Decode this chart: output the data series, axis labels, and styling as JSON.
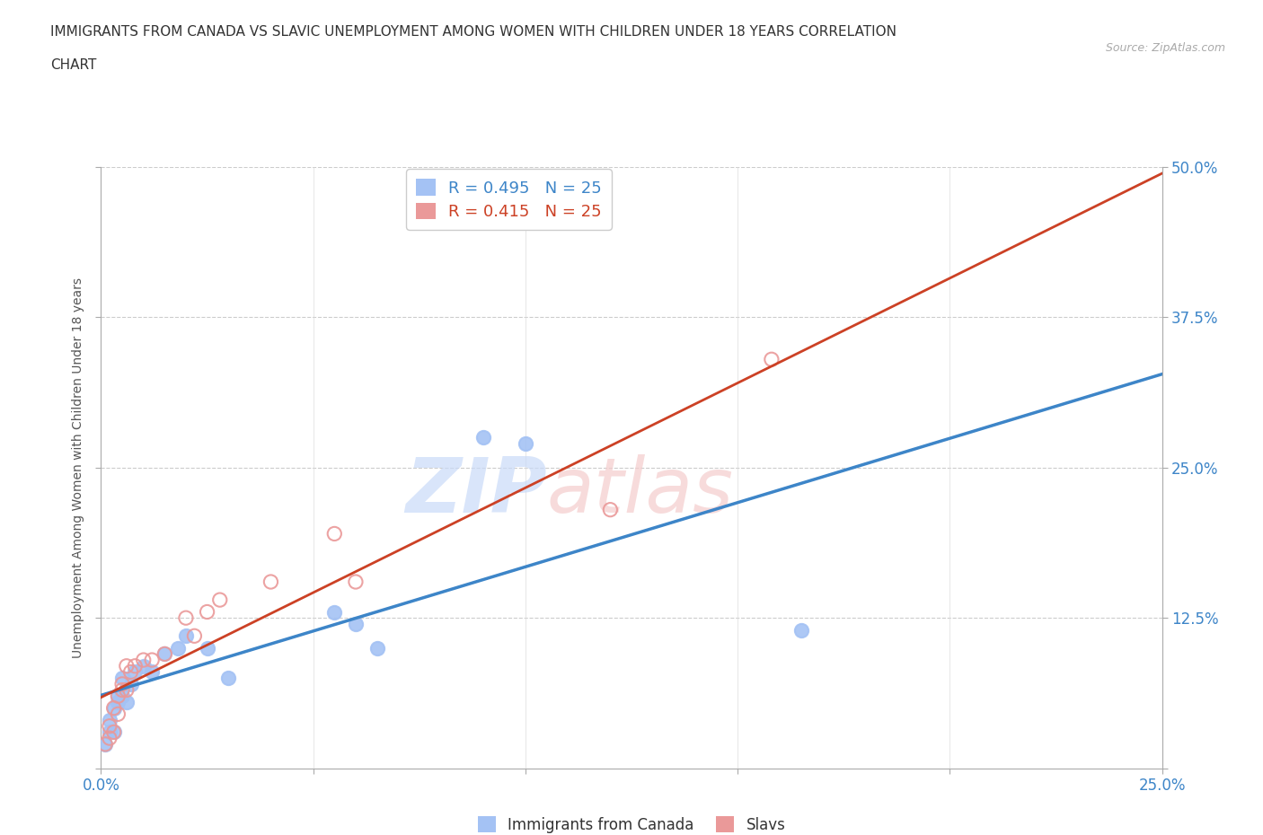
{
  "title_line1": "IMMIGRANTS FROM CANADA VS SLAVIC UNEMPLOYMENT AMONG WOMEN WITH CHILDREN UNDER 18 YEARS CORRELATION",
  "title_line2": "CHART",
  "source": "Source: ZipAtlas.com",
  "ylabel": "Unemployment Among Women with Children Under 18 years",
  "xlim": [
    0.0,
    0.25
  ],
  "ylim": [
    0.0,
    0.5
  ],
  "xtick_positions": [
    0.0,
    0.05,
    0.1,
    0.15,
    0.2,
    0.25
  ],
  "xticklabels": [
    "0.0%",
    "",
    "",
    "",
    "",
    "25.0%"
  ],
  "ytick_positions": [
    0.0,
    0.125,
    0.25,
    0.375,
    0.5
  ],
  "yticklabels": [
    "",
    "12.5%",
    "25.0%",
    "37.5%",
    "50.0%"
  ],
  "canada_R": 0.495,
  "canada_N": 25,
  "slavic_R": 0.415,
  "slavic_N": 25,
  "canada_color": "#a4c2f4",
  "slavic_color": "#ea9999",
  "canada_line_color": "#3d85c8",
  "slavic_line_color": "#cc4125",
  "watermark_text": "ZIPatlas",
  "canada_x": [
    0.001,
    0.002,
    0.002,
    0.003,
    0.003,
    0.004,
    0.004,
    0.005,
    0.005,
    0.006,
    0.007,
    0.008,
    0.01,
    0.012,
    0.015,
    0.018,
    0.02,
    0.025,
    0.03,
    0.055,
    0.06,
    0.065,
    0.09,
    0.1,
    0.165
  ],
  "canada_y": [
    0.02,
    0.03,
    0.04,
    0.03,
    0.05,
    0.055,
    0.06,
    0.06,
    0.075,
    0.055,
    0.07,
    0.08,
    0.085,
    0.08,
    0.095,
    0.1,
    0.11,
    0.1,
    0.075,
    0.13,
    0.12,
    0.1,
    0.275,
    0.27,
    0.115
  ],
  "slavic_x": [
    0.001,
    0.002,
    0.002,
    0.003,
    0.003,
    0.004,
    0.004,
    0.005,
    0.005,
    0.006,
    0.006,
    0.007,
    0.008,
    0.01,
    0.012,
    0.015,
    0.02,
    0.022,
    0.025,
    0.028,
    0.04,
    0.055,
    0.06,
    0.12,
    0.158
  ],
  "slavic_y": [
    0.02,
    0.025,
    0.035,
    0.03,
    0.05,
    0.045,
    0.06,
    0.065,
    0.07,
    0.065,
    0.085,
    0.08,
    0.085,
    0.09,
    0.09,
    0.095,
    0.125,
    0.11,
    0.13,
    0.14,
    0.155,
    0.195,
    0.155,
    0.215,
    0.34
  ]
}
